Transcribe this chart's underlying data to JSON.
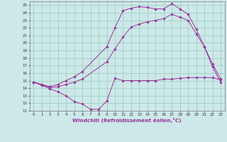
{
  "xlabel": "Windchill (Refroidissement éolien,°C)",
  "bg_color": "#cde8e8",
  "line_color": "#993399",
  "grid_color": "#99ccbb",
  "xlim": [
    -0.5,
    23.5
  ],
  "ylim": [
    11,
    25.5
  ],
  "xticks": [
    0,
    1,
    2,
    3,
    4,
    5,
    6,
    7,
    8,
    9,
    10,
    11,
    12,
    13,
    14,
    15,
    16,
    17,
    18,
    19,
    20,
    21,
    22,
    23
  ],
  "yticks": [
    11,
    12,
    13,
    14,
    15,
    16,
    17,
    18,
    19,
    20,
    21,
    22,
    23,
    24,
    25
  ],
  "curve1_x": [
    0,
    1,
    2,
    3,
    4,
    5,
    6,
    7,
    8,
    9,
    10,
    11,
    12,
    13,
    14,
    15,
    16,
    17,
    18,
    19,
    20,
    21,
    22,
    23
  ],
  "curve1_y": [
    14.8,
    14.4,
    13.9,
    13.5,
    13.0,
    12.2,
    11.9,
    11.2,
    11.2,
    12.3,
    15.3,
    15.0,
    15.0,
    15.0,
    15.0,
    15.0,
    15.2,
    15.2,
    15.3,
    15.4,
    15.4,
    15.4,
    15.4,
    15.1
  ],
  "curve2_x": [
    0,
    1,
    2,
    3,
    4,
    5,
    6,
    9,
    10,
    11,
    12,
    13,
    14,
    15,
    16,
    17,
    18,
    19,
    20,
    21,
    22,
    23
  ],
  "curve2_y": [
    14.8,
    14.4,
    14.1,
    14.2,
    14.5,
    14.8,
    15.2,
    17.5,
    19.2,
    20.8,
    22.1,
    22.5,
    22.8,
    23.0,
    23.2,
    23.8,
    23.4,
    23.0,
    21.2,
    19.5,
    17.2,
    15.2
  ],
  "curve3_x": [
    0,
    1,
    2,
    3,
    4,
    5,
    6,
    9,
    10,
    11,
    12,
    13,
    14,
    15,
    16,
    17,
    18,
    19,
    20,
    21,
    22,
    23
  ],
  "curve3_y": [
    14.8,
    14.5,
    14.2,
    14.5,
    15.0,
    15.5,
    16.2,
    19.5,
    22.0,
    24.3,
    24.6,
    24.8,
    24.7,
    24.5,
    24.5,
    25.2,
    24.5,
    23.8,
    21.8,
    19.5,
    16.8,
    14.8
  ]
}
